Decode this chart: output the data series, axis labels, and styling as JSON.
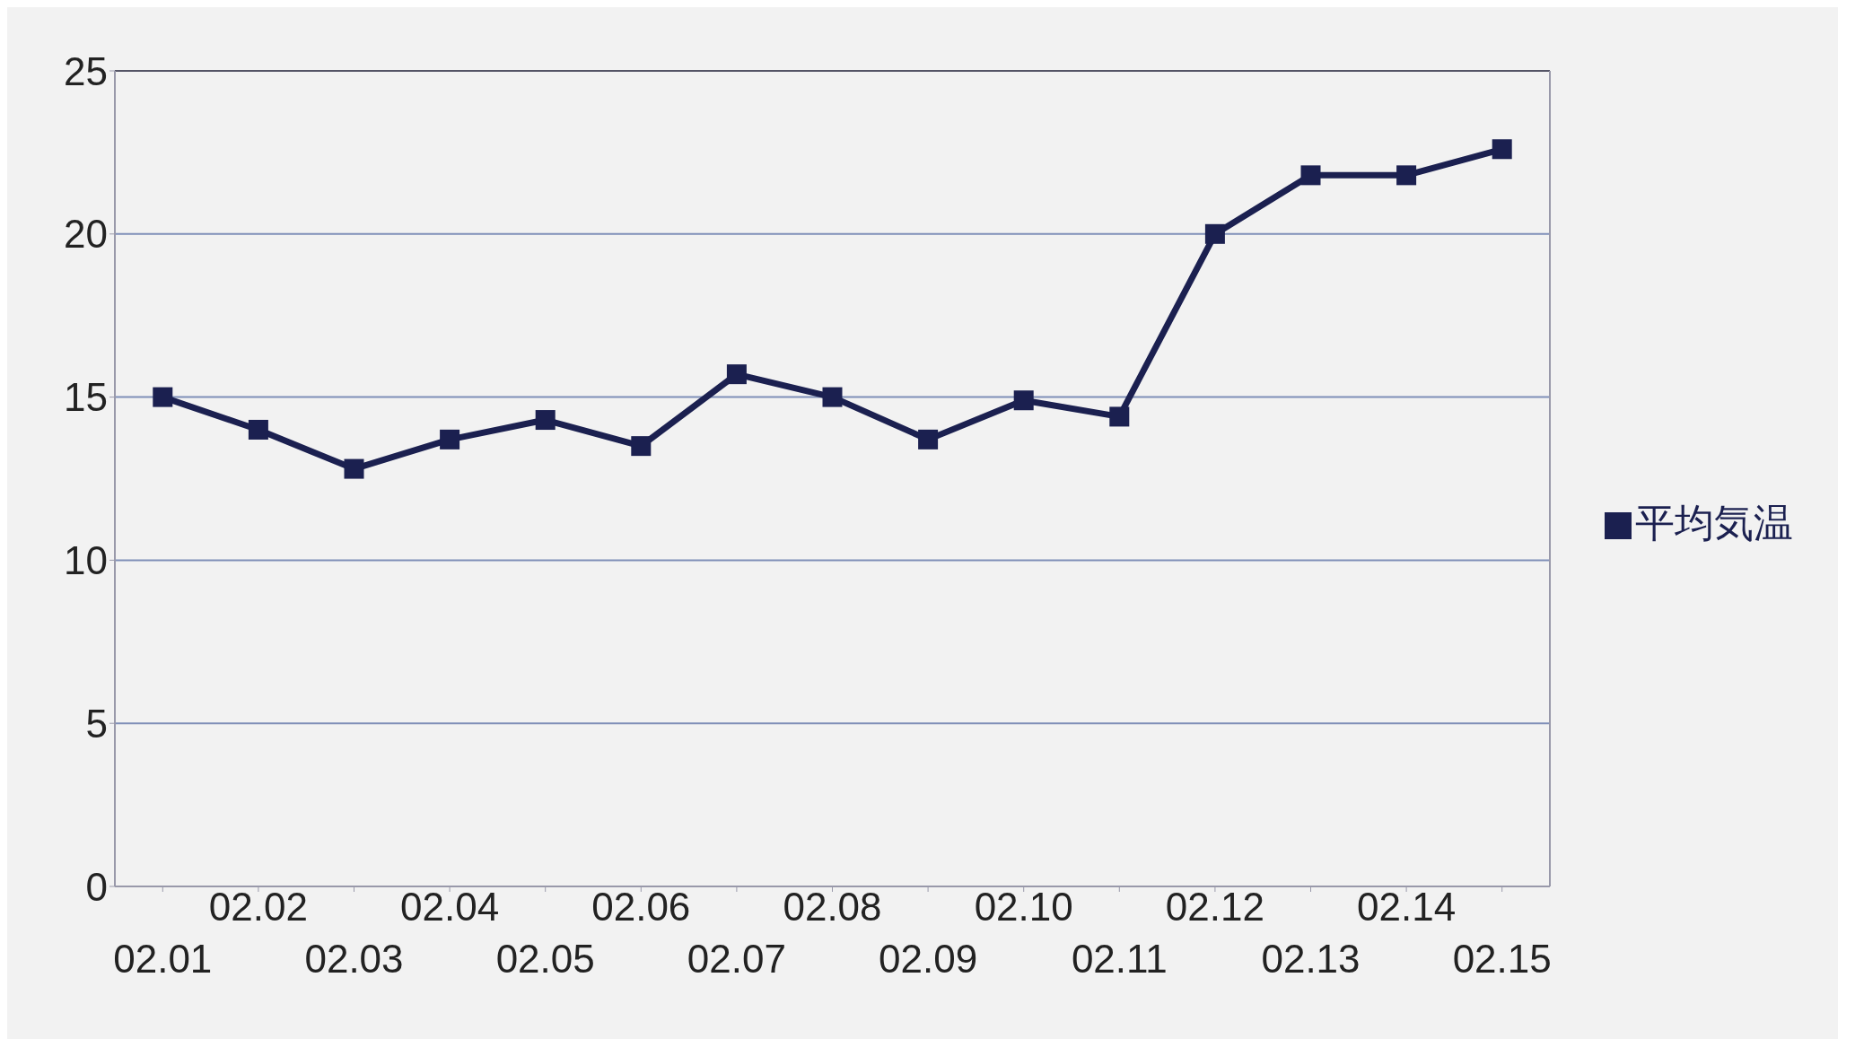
{
  "chart_data": {
    "type": "line",
    "categories": [
      "02.01",
      "02.02",
      "02.03",
      "02.04",
      "02.05",
      "02.06",
      "02.07",
      "02.08",
      "02.09",
      "02.10",
      "02.11",
      "02.12",
      "02.13",
      "02.14",
      "02.15"
    ],
    "series": [
      {
        "name": "平均気温",
        "color": "#1b2050",
        "values": [
          15.0,
          14.0,
          12.8,
          13.7,
          14.3,
          13.5,
          15.7,
          15.0,
          13.7,
          14.9,
          14.4,
          20.0,
          21.8,
          21.8,
          22.6
        ]
      }
    ],
    "ylim": [
      0,
      25
    ],
    "yticks": [
      0,
      5,
      10,
      15,
      20,
      25
    ],
    "grid": "y",
    "legend": "right",
    "marker": "square",
    "line_style": "solid"
  }
}
